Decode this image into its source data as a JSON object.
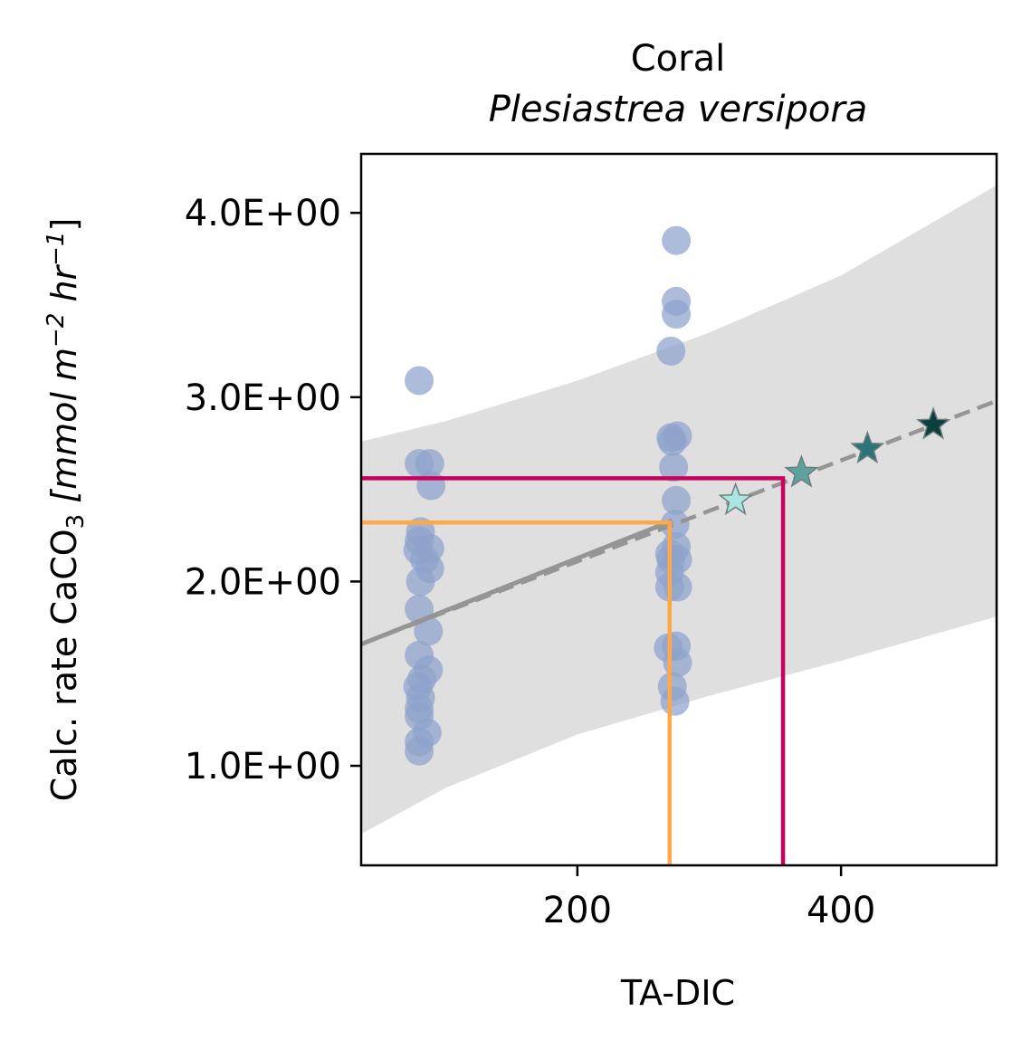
{
  "chart_data": {
    "type": "scatter",
    "title": "Coral",
    "subtitle": "Plesiastrea versipora",
    "xlabel": "TA-DIC",
    "ylabel": {
      "prefix": "Calc. rate CaCO",
      "sub": "3",
      "unit_open": " [mmol m",
      "sup1": "−2",
      "unit_mid": " hr",
      "sup2": "−1",
      "unit_close": "]"
    },
    "xlim": [
      36,
      518
    ],
    "ylim": [
      0.46,
      4.32
    ],
    "xticks": [
      {
        "value": 200,
        "label": "200"
      },
      {
        "value": 400,
        "label": "400"
      }
    ],
    "yticks": [
      {
        "value": 1.0,
        "label": "1.0E+00"
      },
      {
        "value": 2.0,
        "label": "2.0E+00"
      },
      {
        "value": 3.0,
        "label": "3.0E+00"
      },
      {
        "value": 4.0,
        "label": "4.0E+00"
      }
    ],
    "colors": {
      "points": "#8ea2cc",
      "fit": "#959595",
      "band": "#dfdfdf",
      "guide_orange": "#ffa84a",
      "guide_magenta": "#c8005e",
      "star_edge": "#6b7d7d"
    },
    "points": [
      {
        "x": 80,
        "y": 3.09
      },
      {
        "x": 80,
        "y": 2.64
      },
      {
        "x": 88,
        "y": 2.64
      },
      {
        "x": 89,
        "y": 2.52
      },
      {
        "x": 81,
        "y": 2.27
      },
      {
        "x": 80,
        "y": 2.22
      },
      {
        "x": 79,
        "y": 2.17
      },
      {
        "x": 88,
        "y": 2.18
      },
      {
        "x": 84,
        "y": 2.12
      },
      {
        "x": 88,
        "y": 2.07
      },
      {
        "x": 81,
        "y": 2.0
      },
      {
        "x": 80,
        "y": 1.85
      },
      {
        "x": 87,
        "y": 1.73
      },
      {
        "x": 80,
        "y": 1.6
      },
      {
        "x": 87,
        "y": 1.52
      },
      {
        "x": 82,
        "y": 1.47
      },
      {
        "x": 79,
        "y": 1.43
      },
      {
        "x": 81,
        "y": 1.37
      },
      {
        "x": 80,
        "y": 1.31
      },
      {
        "x": 80,
        "y": 1.27
      },
      {
        "x": 86,
        "y": 1.18
      },
      {
        "x": 80,
        "y": 1.13
      },
      {
        "x": 80,
        "y": 1.08
      },
      {
        "x": 275,
        "y": 3.85
      },
      {
        "x": 275,
        "y": 3.52
      },
      {
        "x": 275,
        "y": 3.45
      },
      {
        "x": 271,
        "y": 3.25
      },
      {
        "x": 271,
        "y": 2.78
      },
      {
        "x": 276,
        "y": 2.79
      },
      {
        "x": 272,
        "y": 2.76
      },
      {
        "x": 273,
        "y": 2.62
      },
      {
        "x": 275,
        "y": 2.44
      },
      {
        "x": 274,
        "y": 2.31
      },
      {
        "x": 275,
        "y": 2.19
      },
      {
        "x": 270,
        "y": 2.15
      },
      {
        "x": 271,
        "y": 2.12
      },
      {
        "x": 276,
        "y": 2.12
      },
      {
        "x": 270,
        "y": 2.05
      },
      {
        "x": 270,
        "y": 1.97
      },
      {
        "x": 276,
        "y": 1.97
      },
      {
        "x": 275,
        "y": 1.65
      },
      {
        "x": 269,
        "y": 1.64
      },
      {
        "x": 276,
        "y": 1.56
      },
      {
        "x": 272,
        "y": 1.43
      },
      {
        "x": 274,
        "y": 1.35
      }
    ],
    "fit": {
      "solid": [
        [
          36,
          1.66
        ],
        [
          272,
          2.33
        ]
      ],
      "dashed": [
        [
          36,
          1.66
        ],
        [
          518,
          2.98
        ]
      ]
    },
    "band": {
      "x": [
        36,
        100,
        200,
        300,
        400,
        518
      ],
      "upper": [
        2.76,
        2.87,
        3.09,
        3.35,
        3.66,
        4.15
      ],
      "lower": [
        0.63,
        0.88,
        1.17,
        1.38,
        1.57,
        1.81
      ]
    },
    "guides": [
      {
        "name": "orange",
        "x": 270,
        "y": 2.32,
        "color": "#ffa84a"
      },
      {
        "name": "magenta",
        "x": 356,
        "y": 2.56,
        "color": "#c8005e"
      }
    ],
    "stars": [
      {
        "x": 320,
        "y": 2.44,
        "color": "#a9e6e0"
      },
      {
        "x": 370,
        "y": 2.59,
        "color": "#5fa19c"
      },
      {
        "x": 420,
        "y": 2.72,
        "color": "#2d7478"
      },
      {
        "x": 470,
        "y": 2.85,
        "color": "#0e3f3f"
      }
    ]
  }
}
